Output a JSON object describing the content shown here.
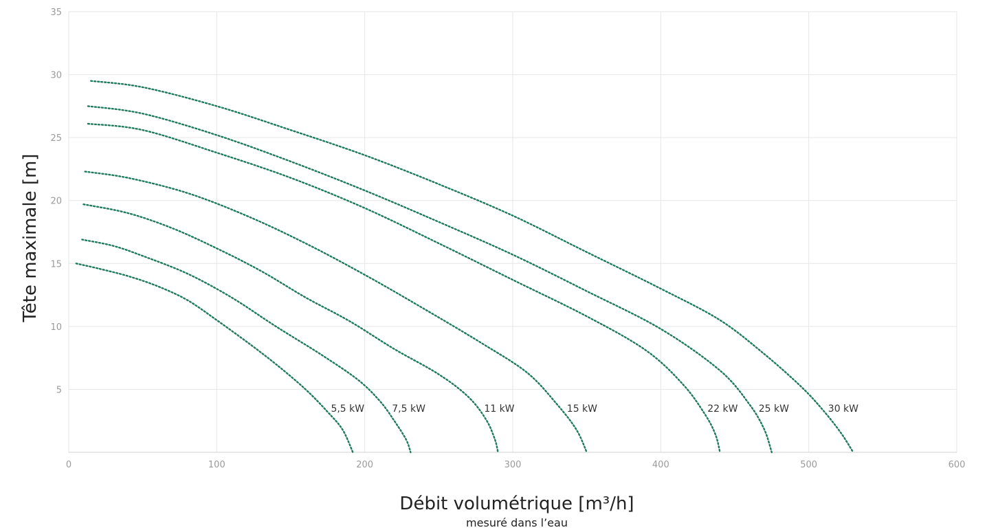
{
  "chart_data": {
    "type": "line",
    "xlabel": "Débit volumétrique [m³/h]",
    "xlabel_sub": "mesuré dans l’eau",
    "ylabel": "Tête maximale [m]",
    "xlim": [
      0,
      600
    ],
    "ylim": [
      0,
      35
    ],
    "x_ticks": [
      "0",
      "100",
      "200",
      "300",
      "400",
      "500",
      "600"
    ],
    "y_ticks": [
      "5",
      "10",
      "15",
      "20",
      "25",
      "30",
      "35"
    ],
    "grid": true,
    "line_style": "dotted",
    "color": "#1e7a5c",
    "series": [
      {
        "name": "5,5 kW",
        "points": [
          [
            5,
            15
          ],
          [
            20,
            14.6
          ],
          [
            40,
            14
          ],
          [
            60,
            13.2
          ],
          [
            80,
            12.1
          ],
          [
            100,
            10.5
          ],
          [
            120,
            8.8
          ],
          [
            140,
            7
          ],
          [
            160,
            5
          ],
          [
            175,
            3.2
          ],
          [
            185,
            1.8
          ],
          [
            192,
            0
          ]
        ]
      },
      {
        "name": "7,5 kW",
        "points": [
          [
            9,
            16.9
          ],
          [
            30,
            16.4
          ],
          [
            50,
            15.6
          ],
          [
            80,
            14.2
          ],
          [
            110,
            12.3
          ],
          [
            140,
            10
          ],
          [
            170,
            7.8
          ],
          [
            195,
            5.8
          ],
          [
            210,
            4.1
          ],
          [
            220,
            2.5
          ],
          [
            228,
            1
          ],
          [
            231,
            0
          ]
        ]
      },
      {
        "name": "11 kW",
        "points": [
          [
            10,
            19.7
          ],
          [
            40,
            19
          ],
          [
            70,
            17.8
          ],
          [
            100,
            16.2
          ],
          [
            130,
            14.4
          ],
          [
            160,
            12.3
          ],
          [
            190,
            10.4
          ],
          [
            220,
            8.2
          ],
          [
            250,
            6.2
          ],
          [
            270,
            4.4
          ],
          [
            282,
            2.6
          ],
          [
            288,
            1
          ],
          [
            290,
            0
          ]
        ]
      },
      {
        "name": "15 kW",
        "points": [
          [
            11,
            22.3
          ],
          [
            40,
            21.8
          ],
          [
            80,
            20.6
          ],
          [
            120,
            18.8
          ],
          [
            160,
            16.6
          ],
          [
            200,
            14.1
          ],
          [
            240,
            11.4
          ],
          [
            280,
            8.6
          ],
          [
            310,
            6.3
          ],
          [
            330,
            3.8
          ],
          [
            343,
            1.8
          ],
          [
            350,
            0
          ]
        ]
      },
      {
        "name": "22 kW",
        "points": [
          [
            13,
            26.1
          ],
          [
            50,
            25.6
          ],
          [
            100,
            23.8
          ],
          [
            150,
            21.8
          ],
          [
            200,
            19.4
          ],
          [
            250,
            16.6
          ],
          [
            300,
            13.7
          ],
          [
            350,
            10.8
          ],
          [
            390,
            8.1
          ],
          [
            415,
            5.4
          ],
          [
            430,
            3
          ],
          [
            437,
            1.4
          ],
          [
            440,
            0
          ]
        ]
      },
      {
        "name": "25 kW",
        "points": [
          [
            13,
            27.5
          ],
          [
            50,
            26.9
          ],
          [
            100,
            25.2
          ],
          [
            150,
            23.1
          ],
          [
            200,
            20.8
          ],
          [
            250,
            18.3
          ],
          [
            300,
            15.7
          ],
          [
            350,
            12.8
          ],
          [
            400,
            9.8
          ],
          [
            440,
            6.5
          ],
          [
            460,
            3.8
          ],
          [
            470,
            1.8
          ],
          [
            475,
            0
          ]
        ]
      },
      {
        "name": "30 kW",
        "points": [
          [
            15,
            29.5
          ],
          [
            50,
            29
          ],
          [
            100,
            27.5
          ],
          [
            150,
            25.6
          ],
          [
            200,
            23.6
          ],
          [
            250,
            21.3
          ],
          [
            300,
            18.8
          ],
          [
            350,
            15.9
          ],
          [
            400,
            13
          ],
          [
            440,
            10.5
          ],
          [
            470,
            7.8
          ],
          [
            495,
            5.2
          ],
          [
            510,
            3.3
          ],
          [
            522,
            1.5
          ],
          [
            530,
            0
          ]
        ]
      }
    ]
  }
}
